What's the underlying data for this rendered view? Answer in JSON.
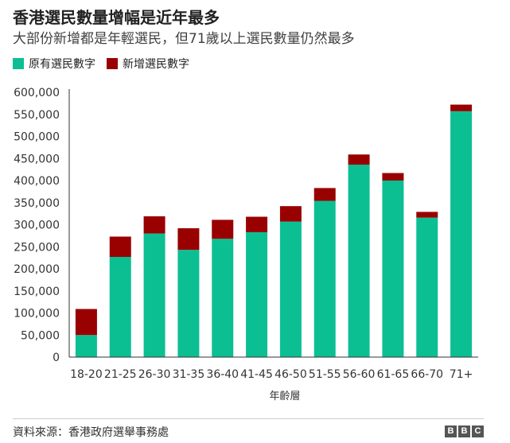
{
  "header": {
    "title": "香港選民數量增幅是近年最多",
    "subtitle": "大部份新增都是年輕選民，但71歲以上選民數量仍然最多"
  },
  "colors": {
    "existing": "#0bbf93",
    "new": "#990000",
    "axis": "#333333",
    "grid": "#dddddd"
  },
  "chart_data": {
    "type": "bar",
    "stacked": true,
    "categories": [
      "18-20",
      "21-25",
      "26-30",
      "31-35",
      "36-40",
      "41-45",
      "46-50",
      "51-55",
      "56-60",
      "61-65",
      "66-70",
      "71+"
    ],
    "series": [
      {
        "name": "原有選民數字",
        "values": [
          50000,
          227000,
          280000,
          243000,
          268000,
          283000,
          307000,
          354000,
          436000,
          400000,
          316000,
          557000
        ]
      },
      {
        "name": "新增選民數字",
        "values": [
          59000,
          46000,
          39000,
          49000,
          43000,
          35000,
          35000,
          29000,
          23000,
          17000,
          13000,
          15000
        ]
      }
    ],
    "xlabel": "年齡層",
    "ylabel": "",
    "ylim": [
      0,
      600000
    ],
    "yticks": [
      "0",
      "50,000",
      "100,000",
      "150,000",
      "200,000",
      "250,000",
      "300,000",
      "350,000",
      "400,000",
      "450,000",
      "500,000",
      "550,000",
      "600,000"
    ],
    "ytick_values": [
      0,
      50000,
      100000,
      150000,
      200000,
      250000,
      300000,
      350000,
      400000,
      450000,
      500000,
      550000,
      600000
    ],
    "legend_position": "top-left",
    "grid": false
  },
  "footer": {
    "source": "資料來源：香港政府選舉事務處",
    "logo": [
      "B",
      "B",
      "C"
    ]
  }
}
